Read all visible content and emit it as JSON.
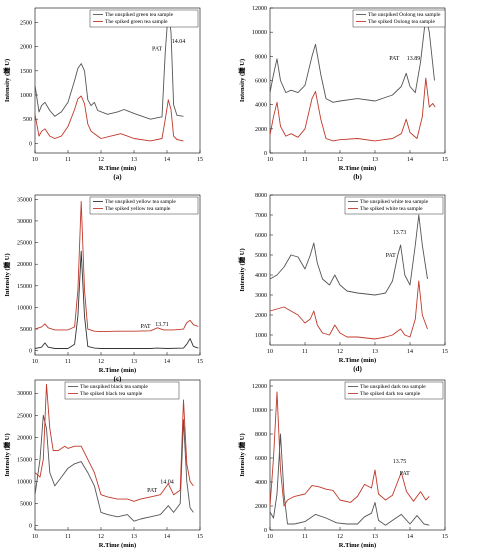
{
  "chart_data": [
    {
      "type": "line",
      "panel_label": "(a)",
      "xlabel": "R.Time (min)",
      "ylabel": "Intensity (鍾 U)",
      "xlim": [
        10,
        15
      ],
      "ylim": [
        -200,
        2800
      ],
      "xticks": [
        10,
        11,
        12,
        13,
        14,
        15
      ],
      "yticks": [
        0,
        500,
        1000,
        1500,
        2000,
        2500
      ],
      "legend_position": "top",
      "annotations": [
        {
          "text": "PAT",
          "x": 13.7,
          "y": 1920
        },
        {
          "text": "14.04",
          "x": 14.35,
          "y": 2080
        }
      ],
      "series": [
        {
          "name": "The unspiked green tea sample",
          "color": "#555555",
          "x": [
            10,
            10.12,
            10.2,
            10.3,
            10.45,
            10.6,
            10.8,
            11,
            11.2,
            11.3,
            11.4,
            11.5,
            11.6,
            11.7,
            11.8,
            11.9,
            12.2,
            12.5,
            12.7,
            13,
            13.5,
            13.85,
            13.95,
            14.04,
            14.12,
            14.2,
            14.3,
            14.5
          ],
          "y": [
            1200,
            650,
            780,
            850,
            680,
            560,
            650,
            850,
            1300,
            1550,
            1650,
            1500,
            900,
            780,
            850,
            680,
            600,
            650,
            700,
            620,
            500,
            550,
            1900,
            2750,
            2300,
            800,
            580,
            560
          ]
        },
        {
          "name": "The spiked green tea sample",
          "color": "#c0392b",
          "x": [
            10,
            10.12,
            10.2,
            10.3,
            10.45,
            10.6,
            10.8,
            11,
            11.2,
            11.3,
            11.4,
            11.5,
            11.6,
            11.7,
            11.8,
            12,
            12.3,
            12.6,
            12.8,
            13,
            13.5,
            13.85,
            13.95,
            14.04,
            14.12,
            14.2,
            14.3,
            14.5
          ],
          "y": [
            600,
            150,
            250,
            300,
            150,
            100,
            150,
            350,
            700,
            920,
            980,
            820,
            400,
            250,
            200,
            100,
            150,
            200,
            150,
            100,
            50,
            100,
            500,
            900,
            700,
            150,
            80,
            50
          ]
        }
      ]
    },
    {
      "type": "line",
      "panel_label": "(b)",
      "xlabel": "R.Time (min)",
      "ylabel": "Intensity (鍾 U)",
      "xlim": [
        10,
        15
      ],
      "ylim": [
        0,
        12000
      ],
      "xticks": [
        10,
        11,
        12,
        13,
        14,
        15
      ],
      "yticks": [
        0,
        2000,
        4000,
        6000,
        8000,
        10000,
        12000
      ],
      "legend_position": "top-right",
      "annotations": [
        {
          "text": "PAT",
          "x": 13.55,
          "y": 7700
        },
        {
          "text": "13.89",
          "x": 14.1,
          "y": 7700
        }
      ],
      "series": [
        {
          "name": "The unspiked Oolong tea sample",
          "color": "#555555",
          "x": [
            10,
            10.1,
            10.2,
            10.3,
            10.45,
            10.6,
            10.8,
            11,
            11.2,
            11.3,
            11.45,
            11.6,
            11.8,
            12,
            12.5,
            13,
            13.5,
            13.75,
            13.89,
            14,
            14.15,
            14.3,
            14.45,
            14.55,
            14.7
          ],
          "y": [
            5000,
            6500,
            7800,
            6000,
            5000,
            5200,
            5000,
            5600,
            8000,
            9000,
            6500,
            4500,
            4200,
            4300,
            4500,
            4300,
            4800,
            5500,
            6600,
            5500,
            5000,
            7500,
            11300,
            10000,
            6000
          ]
        },
        {
          "name": "The spiked Oolong tea sample",
          "color": "#c0392b",
          "x": [
            10,
            10.1,
            10.2,
            10.3,
            10.45,
            10.6,
            10.8,
            11,
            11.2,
            11.3,
            11.45,
            11.6,
            11.8,
            12,
            12.5,
            13,
            13.5,
            13.75,
            13.89,
            14,
            14.2,
            14.35,
            14.45,
            14.55,
            14.65,
            14.72
          ],
          "y": [
            1500,
            3000,
            4200,
            2200,
            1400,
            1600,
            1300,
            2000,
            4500,
            5100,
            2800,
            1200,
            1000,
            1100,
            1200,
            1000,
            1200,
            1600,
            2800,
            1700,
            1200,
            3000,
            6200,
            3800,
            4100,
            3800
          ]
        }
      ]
    },
    {
      "type": "line",
      "panel_label": "(c)",
      "xlabel": "R.Time (min)",
      "ylabel": "Intensity (鍾 U)",
      "xlim": [
        10,
        15
      ],
      "ylim": [
        -1000,
        36000
      ],
      "xticks": [
        10,
        11,
        12,
        13,
        14,
        15
      ],
      "yticks": [
        0,
        5000,
        10000,
        15000,
        20000,
        25000,
        30000,
        35000
      ],
      "legend_position": "top",
      "annotations": [
        {
          "text": "PAT",
          "x": 13.35,
          "y": 5200
        },
        {
          "text": "13.71",
          "x": 13.85,
          "y": 5700
        }
      ],
      "series": [
        {
          "name": "The unspiked yellow tea sample",
          "color": "#333333",
          "x": [
            10,
            10.2,
            10.3,
            10.4,
            10.6,
            11,
            11.2,
            11.3,
            11.4,
            11.5,
            11.6,
            11.8,
            12,
            12.5,
            13,
            13.5,
            13.7,
            14,
            14.5,
            14.6,
            14.7,
            14.8,
            14.95
          ],
          "y": [
            500,
            800,
            1800,
            800,
            500,
            500,
            1500,
            8000,
            23000,
            8000,
            1000,
            600,
            500,
            500,
            500,
            500,
            600,
            500,
            600,
            1500,
            2800,
            1000,
            600
          ]
        },
        {
          "name": "The spiked yellow tea sample",
          "color": "#c0392b",
          "x": [
            10,
            10.2,
            10.3,
            10.4,
            10.6,
            11,
            11.2,
            11.3,
            11.4,
            11.5,
            11.6,
            11.8,
            12,
            12.5,
            13,
            13.5,
            13.71,
            13.9,
            14.2,
            14.5,
            14.6,
            14.7,
            14.8,
            14.95
          ],
          "y": [
            5000,
            5500,
            6200,
            5300,
            4800,
            4800,
            5500,
            14000,
            34500,
            14000,
            5000,
            4500,
            4400,
            4500,
            4500,
            4600,
            5300,
            4800,
            4800,
            5000,
            6500,
            7000,
            6000,
            5600
          ]
        }
      ]
    },
    {
      "type": "line",
      "panel_label": "(d)",
      "xlabel": "R.Time (min)",
      "ylabel": "Intensity (鍾 U)",
      "xlim": [
        10,
        15
      ],
      "ylim": [
        500,
        8000
      ],
      "xticks": [
        10,
        11,
        12,
        13,
        14,
        15
      ],
      "yticks": [
        1000,
        2000,
        3000,
        4000,
        5000,
        6000,
        7000,
        8000
      ],
      "legend_position": "top",
      "annotations": [
        {
          "text": "PAT",
          "x": 13.45,
          "y": 4900
        },
        {
          "text": "13.73",
          "x": 13.7,
          "y": 6050
        }
      ],
      "series": [
        {
          "name": "The unspiked white tea sample",
          "color": "#555555",
          "x": [
            10,
            10.2,
            10.4,
            10.6,
            10.8,
            11,
            11.15,
            11.25,
            11.35,
            11.5,
            11.7,
            11.85,
            12,
            12.2,
            12.5,
            13,
            13.3,
            13.5,
            13.65,
            13.73,
            13.85,
            14,
            14.15,
            14.25,
            14.35,
            14.5
          ],
          "y": [
            3800,
            4000,
            4400,
            5000,
            4900,
            4300,
            5000,
            5600,
            4600,
            3800,
            3500,
            4000,
            3500,
            3200,
            3100,
            3000,
            3100,
            3700,
            5000,
            5500,
            4000,
            3500,
            5500,
            7000,
            5500,
            3800
          ]
        },
        {
          "name": "The spiked white tea sample",
          "color": "#c0392b",
          "x": [
            10,
            10.2,
            10.4,
            10.6,
            10.8,
            11,
            11.15,
            11.25,
            11.35,
            11.5,
            11.7,
            11.85,
            12,
            12.2,
            12.5,
            13,
            13.3,
            13.5,
            13.65,
            13.73,
            13.85,
            14,
            14.15,
            14.25,
            14.35,
            14.5
          ],
          "y": [
            2200,
            2300,
            2400,
            2200,
            2000,
            1600,
            1800,
            2200,
            1500,
            1100,
            1000,
            1500,
            1100,
            900,
            900,
            800,
            900,
            1000,
            1200,
            1300,
            1000,
            900,
            1800,
            3700,
            2000,
            1300
          ]
        }
      ]
    },
    {
      "type": "line",
      "panel_label": "(e)",
      "xlabel": "R.Time (min)",
      "ylabel": "Intensity (鍾 U)",
      "xlim": [
        10,
        15
      ],
      "ylim": [
        -1000,
        33000
      ],
      "xticks": [
        10,
        11,
        12,
        13,
        14,
        15
      ],
      "yticks": [
        0,
        5000,
        10000,
        15000,
        20000,
        25000,
        30000
      ],
      "legend_position": "top",
      "annotations": [
        {
          "text": "PAT",
          "x": 13.55,
          "y": 7600
        },
        {
          "text": "14.04",
          "x": 14.0,
          "y": 9500
        }
      ],
      "series": [
        {
          "name": "The unspiked black tea sample",
          "color": "#555555",
          "x": [
            10,
            10.15,
            10.25,
            10.35,
            10.45,
            10.6,
            10.8,
            11,
            11.2,
            11.4,
            11.6,
            11.8,
            12,
            12.2,
            12.5,
            12.8,
            13,
            13.2,
            13.5,
            13.8,
            14.04,
            14.2,
            14.4,
            14.5,
            14.6,
            14.7,
            14.8
          ],
          "y": [
            7000,
            15000,
            25000,
            22000,
            12000,
            9000,
            11000,
            13000,
            14000,
            14500,
            12000,
            9000,
            3000,
            2500,
            2000,
            2500,
            1000,
            1500,
            2000,
            2500,
            4500,
            3000,
            5000,
            24000,
            10000,
            4000,
            3000
          ]
        },
        {
          "name": "The spiked black tea sample",
          "color": "#c0392b",
          "x": [
            10,
            10.15,
            10.25,
            10.35,
            10.45,
            10.55,
            10.7,
            10.9,
            11,
            11.2,
            11.4,
            11.6,
            11.8,
            12,
            12.2,
            12.5,
            12.8,
            13,
            13.2,
            13.5,
            13.8,
            14.04,
            14.2,
            14.4,
            14.5,
            14.6,
            14.7,
            14.8
          ],
          "y": [
            12000,
            11000,
            15000,
            32000,
            22000,
            17000,
            17000,
            18000,
            17500,
            18000,
            18000,
            15000,
            12000,
            7000,
            6500,
            6000,
            6000,
            5500,
            6000,
            6500,
            7000,
            9500,
            7000,
            8000,
            28500,
            14000,
            10000,
            9000
          ]
        }
      ]
    },
    {
      "type": "line",
      "panel_label": "(f)",
      "xlabel": "R.Time (min)",
      "ylabel": "Intensity (鍾 U)",
      "xlim": [
        10,
        15
      ],
      "ylim": [
        0,
        12500
      ],
      "xticks": [
        10,
        11,
        12,
        13,
        14,
        15
      ],
      "yticks": [
        0,
        2000,
        4000,
        6000,
        8000,
        10000,
        12000
      ],
      "legend_position": "top",
      "annotations": [
        {
          "text": "13.75",
          "x": 13.7,
          "y": 5600
        },
        {
          "text": "PAT",
          "x": 13.85,
          "y": 4600
        }
      ],
      "series": [
        {
          "name": "The unspiked dark tea sample",
          "color": "#555555",
          "x": [
            10,
            10.1,
            10.2,
            10.3,
            10.4,
            10.5,
            10.7,
            11,
            11.3,
            11.6,
            11.9,
            12.2,
            12.5,
            12.7,
            12.9,
            13,
            13.1,
            13.3,
            13.5,
            13.75,
            14,
            14.2,
            14.4,
            14.55
          ],
          "y": [
            1500,
            1000,
            3000,
            8000,
            3000,
            500,
            500,
            700,
            1300,
            1000,
            600,
            500,
            500,
            1100,
            1400,
            2300,
            800,
            400,
            800,
            1300,
            500,
            1200,
            500,
            400
          ]
        },
        {
          "name": "The spiked dark tea sample",
          "color": "#c0392b",
          "x": [
            10,
            10.1,
            10.2,
            10.3,
            10.4,
            10.5,
            10.7,
            11,
            11.2,
            11.4,
            11.6,
            11.8,
            12,
            12.3,
            12.5,
            12.7,
            12.9,
            13,
            13.1,
            13.3,
            13.5,
            13.75,
            13.9,
            14.1,
            14.3,
            14.45,
            14.55
          ],
          "y": [
            2000,
            6000,
            11500,
            5000,
            2000,
            2500,
            2800,
            3000,
            3700,
            3600,
            3400,
            3300,
            2500,
            2300,
            2800,
            3800,
            3500,
            5000,
            3000,
            2500,
            2900,
            4800,
            3200,
            2400,
            3200,
            2500,
            2800
          ]
        }
      ]
    }
  ]
}
